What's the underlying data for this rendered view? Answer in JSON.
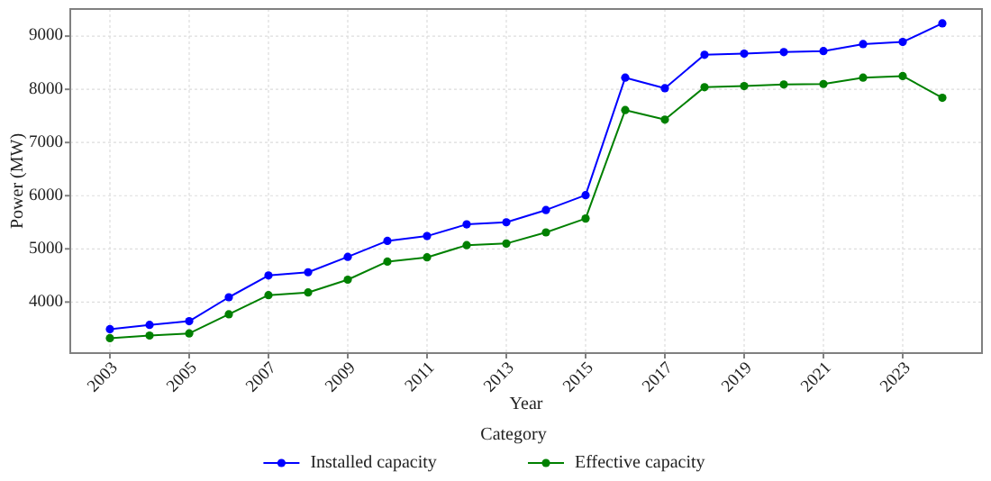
{
  "chart_data": {
    "type": "line",
    "xlabel": "Year",
    "ylabel": "Power (MW)",
    "legend_title": "Category",
    "x": [
      2003,
      2004,
      2005,
      2006,
      2007,
      2008,
      2009,
      2010,
      2011,
      2012,
      2013,
      2014,
      2015,
      2016,
      2017,
      2018,
      2019,
      2020,
      2021,
      2022,
      2023,
      2024
    ],
    "series": [
      {
        "name": "Installed capacity",
        "color": "#0000ff",
        "values": [
          3490,
          3570,
          3640,
          4090,
          4500,
          4560,
          4850,
          5150,
          5240,
          5460,
          5500,
          5730,
          6010,
          8220,
          8020,
          8650,
          8670,
          8700,
          8720,
          8850,
          8890,
          9240
        ]
      },
      {
        "name": "Effective capacity",
        "color": "#008000",
        "values": [
          3320,
          3370,
          3410,
          3770,
          4130,
          4180,
          4420,
          4760,
          4840,
          5070,
          5100,
          5310,
          5570,
          7610,
          7430,
          8040,
          8060,
          8090,
          8100,
          8220,
          8250,
          7840
        ]
      }
    ],
    "xlim": [
      2002,
      2025
    ],
    "xticks": [
      2003,
      2005,
      2007,
      2009,
      2011,
      2013,
      2015,
      2017,
      2019,
      2021,
      2023
    ],
    "ylim": [
      3040,
      9510
    ],
    "yticks": [
      4000,
      5000,
      6000,
      7000,
      8000,
      9000
    ],
    "grid": true,
    "legend": "bottom",
    "marker": "circle",
    "line_style": "solid"
  }
}
